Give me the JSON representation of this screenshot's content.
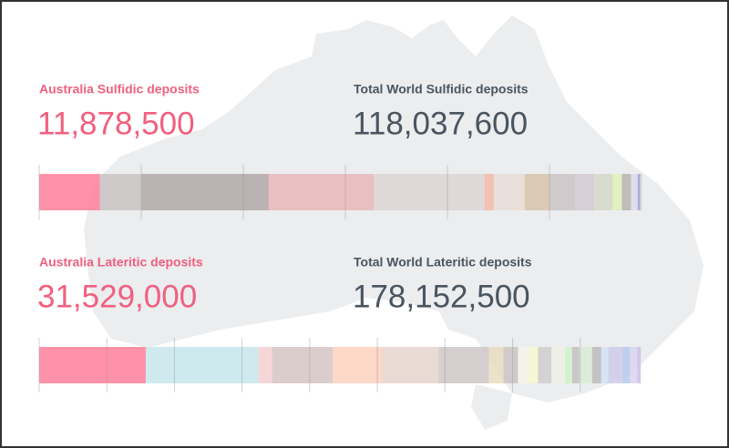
{
  "chart_data": [
    {
      "type": "stacked-bar",
      "australia_label": "Australia Sulfidic deposits",
      "australia_value": {
        "value": 11878500,
        "label": "11,878,500"
      },
      "australia_color": "#ff7f9a",
      "world_label": "Total World Sulfidic deposits",
      "world_value": {
        "value": 118037600,
        "label": "118,037,600"
      },
      "values": [
        8200000,
        24900000,
        20600000,
        21700000,
        1800000,
        6100000,
        4800000,
        5000000,
        3800000,
        3600000,
        1800000,
        1800000,
        1300000,
        500000,
        400000
      ],
      "colors": [
        "#c9c3c3",
        "#b3a8a8",
        "#e9b6b9",
        "#ddd3d3",
        "#f3b9a6",
        "#e8dcd6",
        "#d7c2a9",
        "#cbc3c3",
        "#d3c8d3",
        "#d6d8c5",
        "#e3f0b6",
        "#b9b3b3",
        "#dcdde8",
        "#a89ed6",
        "#d8d8d8"
      ],
      "xlim": [
        0,
        118037600
      ],
      "xticks": [
        0,
        20000000,
        40000000,
        60000000,
        80000000,
        100000000
      ]
    },
    {
      "type": "stacked-bar",
      "australia_label": "Australia Lateritic deposits",
      "australia_value": {
        "value": 31529000,
        "label": "31,529,000"
      },
      "australia_color": "#ff7f9a",
      "world_label": "Total World Lateritic deposits",
      "world_value": {
        "value": 178152500,
        "label": "178,152,500"
      },
      "values": [
        33300000,
        4000000,
        18000000,
        14500000,
        16700000,
        15000000,
        4300000,
        4300000,
        3200000,
        2700000,
        4000000,
        4000000,
        2100000,
        2100000,
        3800000,
        2700000,
        2100000,
        4300000,
        2100000,
        2100000,
        1100000
      ],
      "colors": [
        "#c6e6eb",
        "#f6cfd2",
        "#d6c4c4",
        "#fdd0bd",
        "#e6d3cd",
        "#cfc7c7",
        "#eadcbe",
        "#cbc3c3",
        "#f5f3ea",
        "#f8f8cf",
        "#d0cccc",
        "#eef0e6",
        "#cff2c9",
        "#c3c0c0",
        "#d8ecd6",
        "#bdbaba",
        "#d2e2f4",
        "#cfcbe8",
        "#b5c8ef",
        "#d8d3ee",
        "#c9bfe6"
      ],
      "xlim": [
        0,
        178152500
      ],
      "xticks": [
        0,
        20000000,
        40000000,
        60000000,
        80000000,
        100000000,
        120000000,
        140000000,
        160000000
      ]
    }
  ]
}
